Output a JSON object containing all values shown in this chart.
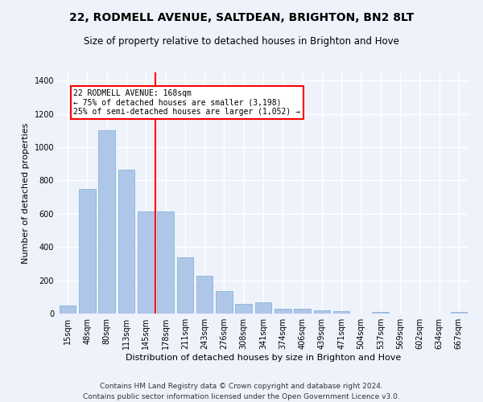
{
  "title_line1": "22, RODMELL AVENUE, SALTDEAN, BRIGHTON, BN2 8LT",
  "title_line2": "Size of property relative to detached houses in Brighton and Hove",
  "xlabel": "Distribution of detached houses by size in Brighton and Hove",
  "ylabel": "Number of detached properties",
  "categories": [
    "15sqm",
    "48sqm",
    "80sqm",
    "113sqm",
    "145sqm",
    "178sqm",
    "211sqm",
    "243sqm",
    "276sqm",
    "308sqm",
    "341sqm",
    "374sqm",
    "406sqm",
    "439sqm",
    "471sqm",
    "504sqm",
    "537sqm",
    "569sqm",
    "602sqm",
    "634sqm",
    "667sqm"
  ],
  "values": [
    50,
    750,
    1100,
    865,
    615,
    615,
    340,
    225,
    135,
    60,
    70,
    30,
    30,
    20,
    15,
    0,
    10,
    0,
    0,
    0,
    10
  ],
  "bar_color": "#aec6e8",
  "bar_edge_color": "#7aaed4",
  "annotation_text_line1": "22 RODMELL AVENUE: 168sqm",
  "annotation_text_line2": "← 75% of detached houses are smaller (3,198)",
  "annotation_text_line3": "25% of semi-detached houses are larger (1,052) →",
  "annotation_box_color": "white",
  "annotation_box_edgecolor": "red",
  "vline_color": "red",
  "ylim": [
    0,
    1450
  ],
  "yticks": [
    0,
    200,
    400,
    600,
    800,
    1000,
    1200,
    1400
  ],
  "footer_line1": "Contains HM Land Registry data © Crown copyright and database right 2024.",
  "footer_line2": "Contains public sector information licensed under the Open Government Licence v3.0.",
  "background_color": "#eef2fb",
  "grid_color": "white",
  "title1_fontsize": 10,
  "title2_fontsize": 8.5,
  "xlabel_fontsize": 8,
  "ylabel_fontsize": 8,
  "footer_fontsize": 6.5,
  "tick_fontsize": 7,
  "annotation_fontsize": 7
}
